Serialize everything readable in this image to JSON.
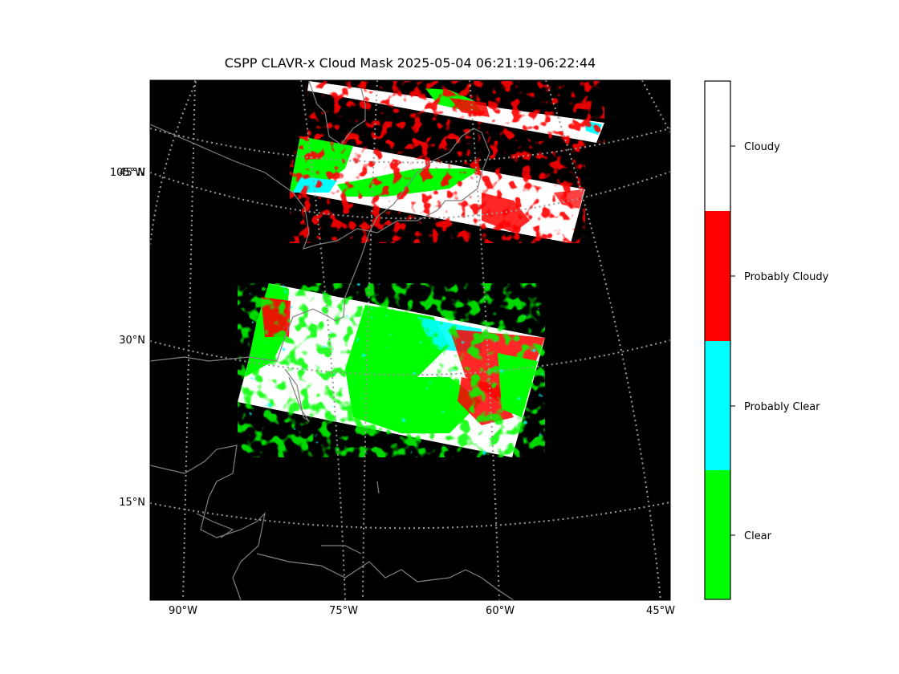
{
  "title": "CSPP CLAVR-x Cloud Mask 2025-05-04 06:21:19-06:22:44",
  "map": {
    "projection": "lambert-conformal",
    "background_color": "#000000",
    "coastline_color": "#808080",
    "gridline_style": "dotted",
    "lon_ticks": [
      "90°W",
      "75°W",
      "60°W",
      "45°W"
    ],
    "lat_ticks": [
      "105°W",
      "45°N",
      "30°N",
      "15°N"
    ]
  },
  "legend": {
    "categories": [
      {
        "label": "Cloudy",
        "color": "#ffffff"
      },
      {
        "label": "Probably Cloudy",
        "color": "#ff0000"
      },
      {
        "label": "Probably Clear",
        "color": "#00ffff"
      },
      {
        "label": "Clear",
        "color": "#00ff00"
      }
    ]
  }
}
